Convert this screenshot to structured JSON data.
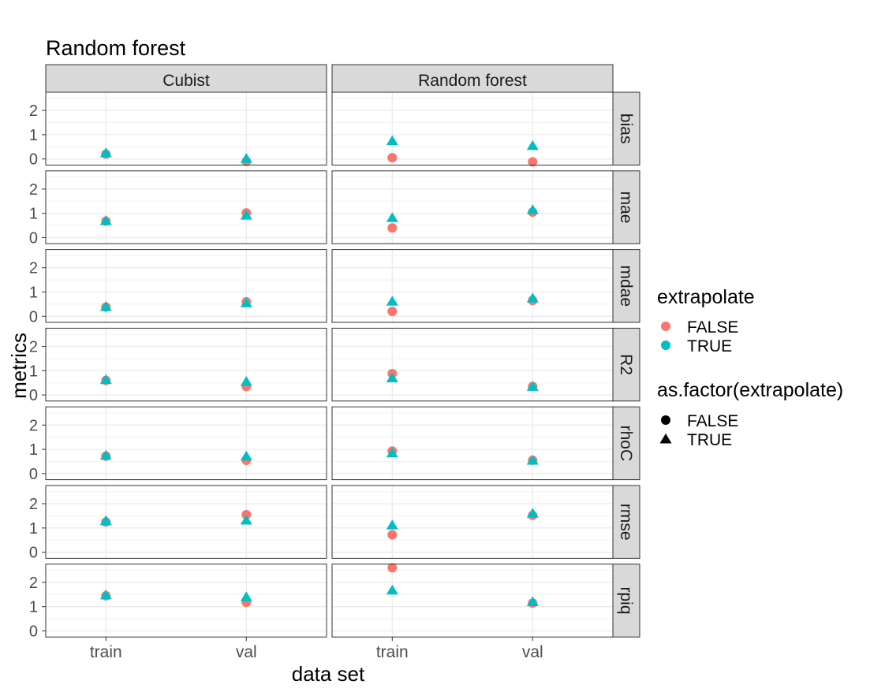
{
  "chart_data": {
    "type": "scatter",
    "title": "Random forest",
    "xlabel": "data set",
    "ylabel": "metrics",
    "categories": [
      "train",
      "val"
    ],
    "ylim": [
      -0.25,
      2.75
    ],
    "y_ticks": [
      0,
      1,
      2
    ],
    "grid": true,
    "facet_cols": [
      "Cubist",
      "Random forest"
    ],
    "facet_rows": [
      "bias",
      "mae",
      "mdae",
      "R2",
      "rhoC",
      "rmse",
      "rpiq"
    ],
    "legend": {
      "position": "right",
      "color_title": "extrapolate",
      "shape_title": "as.factor(extrapolate)",
      "entries": [
        "FALSE",
        "TRUE"
      ]
    },
    "colors": {
      "FALSE": "#F8766D",
      "TRUE": "#00BFC4"
    },
    "series": [
      {
        "name": "FALSE",
        "values": {
          "Cubist": {
            "bias": [
              0.2,
              -0.1
            ],
            "mae": [
              0.68,
              1.02
            ],
            "mdae": [
              0.38,
              0.6
            ],
            "R2": [
              0.6,
              0.35
            ],
            "rhoC": [
              0.72,
              0.55
            ],
            "rmse": [
              1.25,
              1.55
            ],
            "rpiq": [
              1.45,
              1.18
            ]
          },
          "Random forest": {
            "bias": [
              0.05,
              -0.12
            ],
            "mae": [
              0.4,
              1.05
            ],
            "mdae": [
              0.2,
              0.65
            ],
            "R2": [
              0.88,
              0.35
            ],
            "rhoC": [
              0.93,
              0.55
            ],
            "rmse": [
              0.72,
              1.52
            ],
            "rpiq": [
              2.6,
              1.15
            ]
          }
        }
      },
      {
        "name": "TRUE",
        "values": {
          "Cubist": {
            "bias": [
              0.25,
              0.02
            ],
            "mae": [
              0.7,
              0.92
            ],
            "mdae": [
              0.4,
              0.55
            ],
            "R2": [
              0.63,
              0.55
            ],
            "rhoC": [
              0.75,
              0.72
            ],
            "rmse": [
              1.3,
              1.32
            ],
            "rpiq": [
              1.48,
              1.4
            ]
          },
          "Random forest": {
            "bias": [
              0.75,
              0.55
            ],
            "mae": [
              0.82,
              1.15
            ],
            "mdae": [
              0.62,
              0.75
            ],
            "R2": [
              0.7,
              0.35
            ],
            "rhoC": [
              0.85,
              0.55
            ],
            "rmse": [
              1.12,
              1.6
            ],
            "rpiq": [
              1.68,
              1.2
            ]
          }
        }
      }
    ]
  }
}
